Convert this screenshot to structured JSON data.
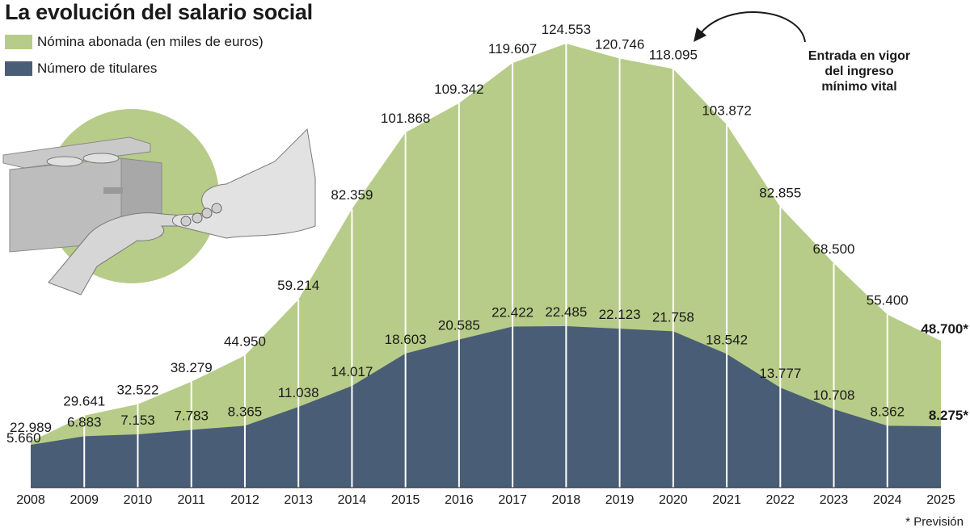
{
  "title": "La evolución del salario social",
  "legend": [
    {
      "label": "Nómina abonada (en miles de euros)",
      "color": "#b7cc88"
    },
    {
      "label": "Número de titulares",
      "color": "#4a5d76"
    }
  ],
  "annotation": {
    "lines": [
      "Entrada en vigor",
      "del ingreso",
      "mínimo vital"
    ]
  },
  "footnote": "* Previsión",
  "colors": {
    "green": "#b7cc88",
    "navy": "#4a5d76",
    "circle": "#b7cc88",
    "text": "#1a1a1a"
  },
  "chart_data": {
    "type": "area",
    "categories": [
      "2008",
      "2009",
      "2010",
      "2011",
      "2012",
      "2013",
      "2014",
      "2015",
      "2016",
      "2017",
      "2018",
      "2019",
      "2020",
      "2021",
      "2022",
      "2023",
      "2024",
      "2025"
    ],
    "series": [
      {
        "name": "Nómina abonada (en miles de euros)",
        "values": [
          22989,
          29641,
          32522,
          38279,
          44950,
          59214,
          82359,
          101868,
          109342,
          119607,
          124553,
          120746,
          118095,
          103872,
          82855,
          68500,
          55400,
          48700
        ],
        "labels": [
          "22.989",
          "29.641",
          "32.522",
          "38.279",
          "44.950",
          "59.214",
          "82.359",
          "101.868",
          "109.342",
          "119.607",
          "124.553",
          "120.746",
          "118.095",
          "103.872",
          "82.855",
          "68.500",
          "55.400",
          "48.700*"
        ]
      },
      {
        "name": "Número de titulares",
        "values": [
          5660,
          6883,
          7153,
          7783,
          8365,
          11038,
          14017,
          18603,
          20585,
          22422,
          22485,
          22123,
          21758,
          18542,
          13777,
          10708,
          8362,
          8275
        ],
        "labels": [
          "5.660",
          "6.883",
          "7.153",
          "7.783",
          "8.365",
          "11.038",
          "14.017",
          "18.603",
          "20.585",
          "22.422",
          "22.485",
          "22.123",
          "21.758",
          "18.542",
          "13.777",
          "10.708",
          "8.362",
          "8.275*"
        ]
      }
    ],
    "forecast_years": [
      "2025"
    ]
  }
}
